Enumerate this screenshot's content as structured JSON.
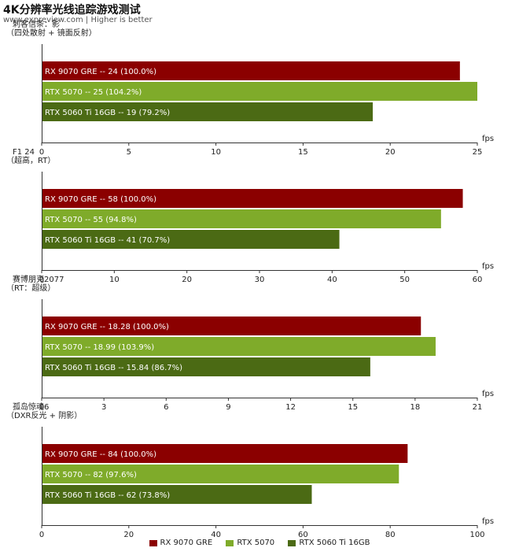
{
  "header": {
    "title": "4K分辨率光线追踪游戏测试",
    "subtitle": "www.expreview.com | Higher is better"
  },
  "colors": {
    "RX 9070 GRE": "#8b0000",
    "RTX 5070": "#7fab2a",
    "RTX 5060 Ti 16GB": "#4b6a14"
  },
  "legend": [
    "RX 9070 GRE",
    "RTX 5070",
    "RTX 5060 Ti 16GB"
  ],
  "chart_data": [
    {
      "type": "bar",
      "title": "刺客信条：影",
      "subtitle": "（四处散射 + 镜面反射）",
      "unit": "fps",
      "xlim": [
        0,
        25
      ],
      "ticks": [
        0,
        5,
        10,
        15,
        20,
        25
      ],
      "bars": [
        {
          "name": "RX 9070 GRE",
          "value": 24,
          "label": "RX 9070 GRE  --  24 (100.0%)"
        },
        {
          "name": "RTX 5070",
          "value": 25,
          "label": "RTX 5070  --  25 (104.2%)"
        },
        {
          "name": "RTX 5060 Ti 16GB",
          "value": 19,
          "label": "RTX 5060 Ti 16GB  --  19 (79.2%)"
        }
      ]
    },
    {
      "type": "bar",
      "title": "F1 24",
      "subtitle": "（超高，RT）",
      "unit": "fps",
      "xlim": [
        0,
        60
      ],
      "ticks": [
        0,
        10,
        20,
        30,
        40,
        50,
        60
      ],
      "bars": [
        {
          "name": "RX 9070 GRE",
          "value": 58,
          "label": "RX 9070 GRE  --  58 (100.0%)"
        },
        {
          "name": "RTX 5070",
          "value": 55,
          "label": "RTX 5070  --  55 (94.8%)"
        },
        {
          "name": "RTX 5060 Ti 16GB",
          "value": 41,
          "label": "RTX 5060 Ti 16GB  --  41 (70.7%)"
        }
      ]
    },
    {
      "type": "bar",
      "title": "赛博朋克2077",
      "subtitle": "（RT：超级）",
      "unit": "fps",
      "xlim": [
        0,
        21
      ],
      "ticks": [
        0,
        3,
        6,
        9,
        12,
        15,
        18,
        21
      ],
      "bars": [
        {
          "name": "RX 9070 GRE",
          "value": 18.28,
          "label": "RX 9070 GRE  --  18.28 (100.0%)"
        },
        {
          "name": "RTX 5070",
          "value": 18.99,
          "label": "RTX 5070  --  18.99 (103.9%)"
        },
        {
          "name": "RTX 5060 Ti 16GB",
          "value": 15.84,
          "label": "RTX 5060 Ti 16GB  --  15.84 (86.7%)"
        }
      ]
    },
    {
      "type": "bar",
      "title": "孤岛惊魂6",
      "subtitle": "（DXR反光 + 阴影）",
      "unit": "fps",
      "xlim": [
        0,
        100
      ],
      "ticks": [
        0,
        20,
        40,
        60,
        80,
        100
      ],
      "bars": [
        {
          "name": "RX 9070 GRE",
          "value": 84,
          "label": "RX 9070 GRE  --  84 (100.0%)"
        },
        {
          "name": "RTX 5070",
          "value": 82,
          "label": "RTX 5070  --  82 (97.6%)"
        },
        {
          "name": "RTX 5060 Ti 16GB",
          "value": 62,
          "label": "RTX 5060 Ti 16GB  --  62 (73.8%)"
        }
      ]
    }
  ]
}
